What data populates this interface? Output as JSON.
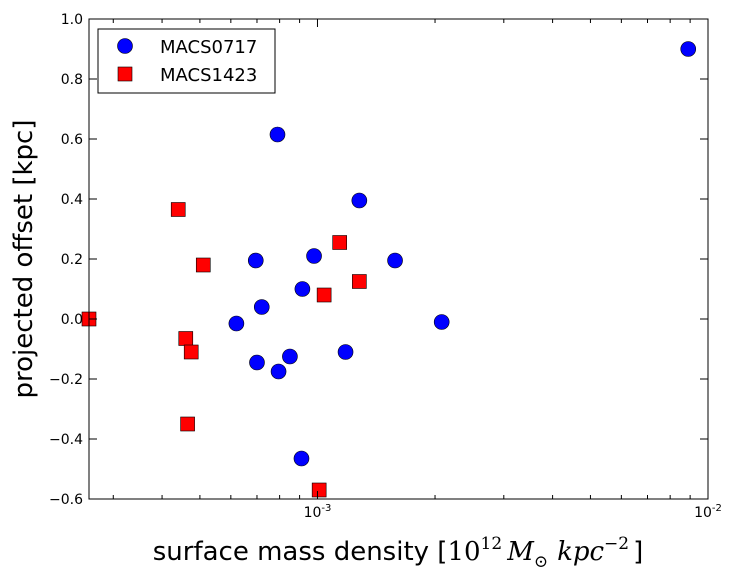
{
  "chart_data": {
    "type": "scatter",
    "xscale": "log",
    "xlim": [
      0.00026,
      0.01
    ],
    "ylim": [
      -0.6,
      1.0
    ],
    "xlabel": "surface mass density [10^12 M_⊙ kpc^-2]",
    "xlabel_parts": {
      "prefix": "surface mass density [",
      "base": "10",
      "exp1": "12",
      "msym": "M",
      "msub": "⊙",
      "unit": "kpc",
      "exp2": "−2",
      "suffix": "]"
    },
    "ylabel": "projected offset [kpc]",
    "y_ticks": [
      -0.6,
      -0.4,
      -0.2,
      0.0,
      0.2,
      0.4,
      0.6,
      0.8,
      1.0
    ],
    "y_tick_labels": [
      "−0.6",
      "−0.4",
      "−0.2",
      "0.0",
      "0.2",
      "0.4",
      "0.6",
      "0.8",
      "1.0"
    ],
    "x_ticks": [
      0.001,
      0.01
    ],
    "x_tick_labels": [
      {
        "base": "10",
        "exp": "-3"
      },
      {
        "base": "10",
        "exp": "-2"
      }
    ],
    "legend_position": "top-left",
    "series": [
      {
        "name": "MACS0717",
        "marker": "circle",
        "color": "#0000ff",
        "points": [
          {
            "x": 0.00062,
            "y": -0.015
          },
          {
            "x": 0.000695,
            "y": 0.195
          },
          {
            "x": 0.0007,
            "y": -0.145
          },
          {
            "x": 0.00072,
            "y": 0.04
          },
          {
            "x": 0.00079,
            "y": 0.615
          },
          {
            "x": 0.000795,
            "y": -0.175
          },
          {
            "x": 0.00085,
            "y": -0.125
          },
          {
            "x": 0.000915,
            "y": 0.1
          },
          {
            "x": 0.00091,
            "y": -0.465
          },
          {
            "x": 0.00098,
            "y": 0.21
          },
          {
            "x": 0.00118,
            "y": -0.11
          },
          {
            "x": 0.00128,
            "y": 0.395
          },
          {
            "x": 0.00158,
            "y": 0.195
          },
          {
            "x": 0.00208,
            "y": -0.01
          },
          {
            "x": 0.0089,
            "y": 0.9
          }
        ]
      },
      {
        "name": "MACS1423",
        "marker": "square",
        "color": "#ff0000",
        "points": [
          {
            "x": 0.00026,
            "y": 0.0
          },
          {
            "x": 0.00044,
            "y": 0.365
          },
          {
            "x": 0.00046,
            "y": -0.065
          },
          {
            "x": 0.000465,
            "y": -0.35
          },
          {
            "x": 0.000475,
            "y": -0.11
          },
          {
            "x": 0.00051,
            "y": 0.18
          },
          {
            "x": 0.00101,
            "y": -0.57
          },
          {
            "x": 0.00104,
            "y": 0.08
          },
          {
            "x": 0.00114,
            "y": 0.255
          },
          {
            "x": 0.00128,
            "y": 0.125
          }
        ]
      }
    ]
  }
}
